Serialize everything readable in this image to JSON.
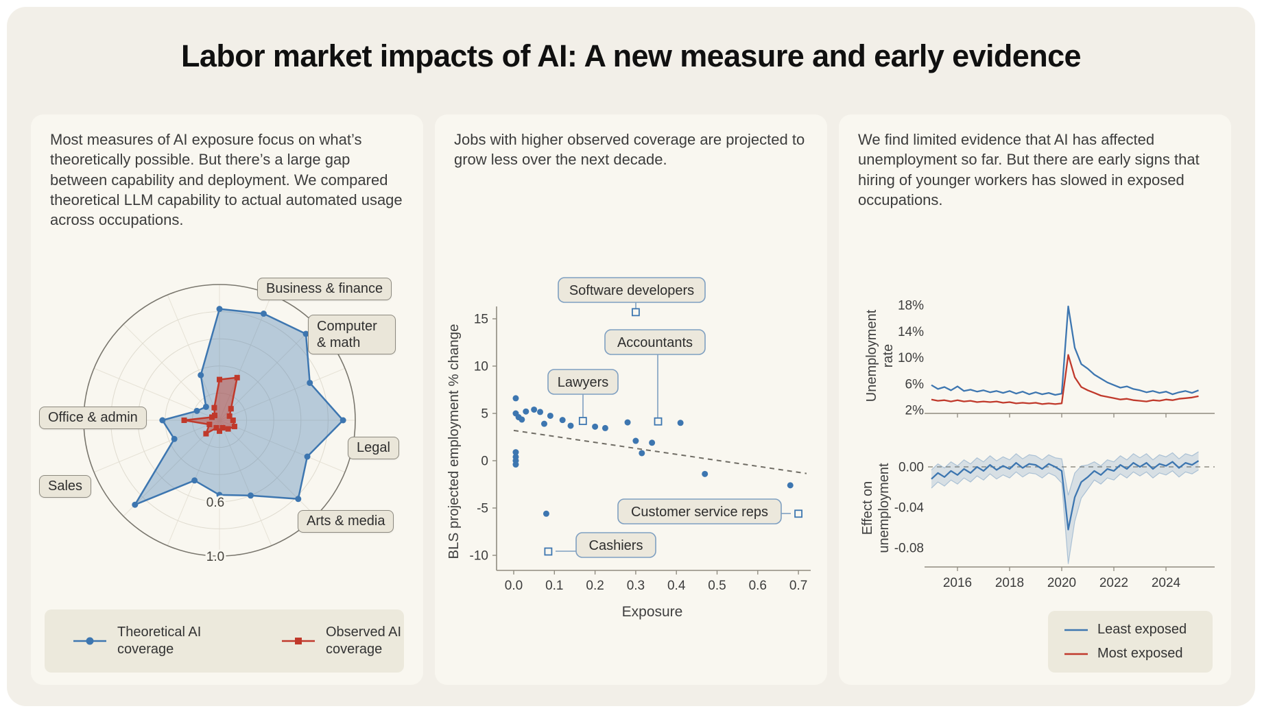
{
  "page": {
    "title": "Labor market impacts of AI: A new measure and early evidence"
  },
  "colors": {
    "blue": "#3d76b0",
    "red": "#c0392b",
    "grid": "#dfdbcf",
    "axis": "#8f8b7f",
    "box_border": "#8c897f",
    "scatter_box_border": "#7e9fc1",
    "card_bg": "#f9f7f0",
    "text": "#3c3c3c"
  },
  "panels": {
    "radar": {
      "intro": "Most measures of AI exposure focus on what’s theoretically possible. But there’s a large gap between capability and deployment. We compared theoretical LLM capability to actual automated usage across occupations.",
      "legend": [
        {
          "label": "Theoretical AI coverage",
          "marker": "circle"
        },
        {
          "label": "Observed AI coverage",
          "marker": "square"
        }
      ]
    },
    "scatter": {
      "intro": "Jobs with higher observed coverage are projected to grow less over the next decade."
    },
    "lines": {
      "intro": "We find limited evidence that AI has affected unemployment so far. But there are early signs that hiring of younger workers has slowed in exposed occupations.",
      "legend": [
        {
          "label": "Least exposed"
        },
        {
          "label": "Most exposed"
        }
      ]
    }
  },
  "chart_data": [
    {
      "type": "radar",
      "name": "Theoretical vs observed AI coverage by occupation",
      "r_max": 1.0,
      "rings": [
        0.2,
        0.4,
        0.6,
        0.8,
        1.0
      ],
      "ring_labels": [
        {
          "v": 0.6,
          "label": "0.6"
        },
        {
          "v": 1.0,
          "label": "1.0"
        }
      ],
      "spoke_labels": [
        {
          "index": 1,
          "text": "Business & finance"
        },
        {
          "index": 2,
          "text": "Computer & math"
        },
        {
          "index": 4,
          "text": "Legal"
        },
        {
          "index": 6,
          "text": "Arts & media"
        },
        {
          "index": 10,
          "text": "Sales"
        },
        {
          "index": 12,
          "text": "Office & admin"
        }
      ],
      "series": [
        {
          "name": "Theoretical AI coverage",
          "color": "#3d76b0",
          "marker": "circle",
          "fill_opacity": 0.35,
          "values": [
            0.82,
            0.85,
            0.9,
            0.72,
            0.91,
            0.7,
            0.82,
            0.6,
            0.55,
            0.48,
            0.88,
            0.36,
            0.42,
            0.18,
            0.14,
            0.36
          ]
        },
        {
          "name": "Observed AI coverage",
          "color": "#c0392b",
          "marker": "square",
          "fill_opacity": 0.45,
          "values": [
            0.3,
            0.34,
            0.12,
            0.08,
            0.1,
            0.12,
            0.09,
            0.06,
            0.08,
            0.06,
            0.14,
            0.08,
            0.26,
            0.06,
            0.05,
            0.1
          ]
        }
      ]
    },
    {
      "type": "scatter",
      "xlabel": "Exposure",
      "ylabel": "BLS projected employment % change",
      "xlim": [
        -0.02,
        0.74
      ],
      "ylim": [
        -11.5,
        16.5
      ],
      "xticks": [
        0.0,
        0.1,
        0.2,
        0.3,
        0.4,
        0.5,
        0.6,
        0.7
      ],
      "xtick_labels": [
        "0.0",
        "0.1",
        "0.2",
        "0.3",
        "0.4",
        "0.5",
        "0.6",
        "0.7"
      ],
      "yticks": [
        15,
        10,
        5,
        0,
        -5,
        -10
      ],
      "ytick_labels": [
        "15",
        "10",
        "5",
        "0",
        "-5",
        "-10"
      ],
      "points": [
        [
          0.005,
          6.6
        ],
        [
          0.005,
          5.0
        ],
        [
          0.012,
          4.6
        ],
        [
          0.02,
          4.35
        ],
        [
          0.03,
          5.2
        ],
        [
          0.005,
          0.9
        ],
        [
          0.005,
          0.4
        ],
        [
          0.005,
          0.0
        ],
        [
          0.005,
          -0.4
        ],
        [
          0.05,
          5.4
        ],
        [
          0.065,
          5.15
        ],
        [
          0.09,
          4.75
        ],
        [
          0.075,
          3.9
        ],
        [
          0.12,
          4.3
        ],
        [
          0.14,
          3.7
        ],
        [
          0.2,
          3.6
        ],
        [
          0.225,
          3.45
        ],
        [
          0.28,
          4.05
        ],
        [
          0.3,
          2.1
        ],
        [
          0.315,
          0.8
        ],
        [
          0.41,
          4.0
        ],
        [
          0.34,
          1.9
        ],
        [
          0.47,
          -1.4
        ],
        [
          0.08,
          -5.6
        ],
        [
          0.68,
          -2.6
        ]
      ],
      "labeled_points": [
        {
          "label": "Software developers",
          "x": 0.3,
          "y": 15.7
        },
        {
          "label": "Accountants",
          "x": 0.355,
          "y": 4.15
        },
        {
          "label": "Lawyers",
          "x": 0.17,
          "y": 4.2
        },
        {
          "label": "Customer service reps",
          "x": 0.7,
          "y": -5.6
        },
        {
          "label": "Cashiers",
          "x": 0.085,
          "y": -9.6
        }
      ],
      "trend_line": {
        "x1": 0.0,
        "y1": 3.2,
        "x2": 0.72,
        "y2": -1.35,
        "style": "dashed"
      }
    },
    {
      "type": "line",
      "name": "Unemployment rate by exposure group",
      "ylabel_lines": [
        "Unemployment",
        "rate"
      ],
      "x_start": 2015.0,
      "x_step": 0.25,
      "xticks": [
        2016,
        2018,
        2020,
        2022,
        2024
      ],
      "yticks": [
        {
          "v": 18,
          "label": "18%"
        },
        {
          "v": 14,
          "label": "14%"
        },
        {
          "v": 10,
          "label": "10%"
        },
        {
          "v": 6,
          "label": "6%"
        },
        {
          "v": 2,
          "label": "2%"
        }
      ],
      "series": [
        {
          "name": "Least exposed",
          "color": "#3d76b0",
          "values": [
            5.8,
            5.2,
            5.5,
            5.0,
            5.6,
            4.9,
            5.1,
            4.8,
            5.0,
            4.7,
            4.9,
            4.6,
            4.9,
            4.5,
            4.8,
            4.4,
            4.7,
            4.4,
            4.6,
            4.3,
            4.5,
            17.8,
            11.5,
            9.0,
            8.3,
            7.4,
            6.8,
            6.2,
            5.8,
            5.4,
            5.6,
            5.2,
            5.0,
            4.7,
            4.9,
            4.6,
            4.8,
            4.4,
            4.7,
            4.9,
            4.6,
            5.0
          ]
        },
        {
          "name": "Most exposed",
          "color": "#c0392b",
          "values": [
            3.6,
            3.4,
            3.5,
            3.3,
            3.5,
            3.3,
            3.4,
            3.2,
            3.3,
            3.2,
            3.3,
            3.1,
            3.2,
            3.0,
            3.1,
            3.0,
            3.1,
            2.9,
            3.0,
            2.9,
            3.0,
            10.4,
            7.0,
            5.5,
            5.0,
            4.6,
            4.2,
            4.0,
            3.8,
            3.6,
            3.7,
            3.5,
            3.4,
            3.3,
            3.5,
            3.4,
            3.6,
            3.5,
            3.7,
            3.8,
            3.9,
            4.1
          ]
        }
      ]
    },
    {
      "type": "line_band",
      "name": "Effect on unemployment in exposed occupations",
      "ylabel_lines": [
        "Effect on",
        "unemployment"
      ],
      "x_start": 2015.0,
      "x_step": 0.25,
      "xticks": [
        2016,
        2018,
        2020,
        2022,
        2024
      ],
      "yticks": [
        {
          "v": 0,
          "label": "0.00"
        },
        {
          "v": -0.04,
          "label": "-0.04"
        },
        {
          "v": -0.08,
          "label": "-0.08"
        }
      ],
      "zero_line": true,
      "series": [
        {
          "name": "Effect estimate",
          "color": "#3d76b0",
          "values": [
            -0.012,
            -0.006,
            -0.01,
            -0.004,
            -0.008,
            -0.002,
            -0.006,
            0.0,
            -0.004,
            0.002,
            -0.003,
            0.001,
            -0.002,
            0.004,
            -0.001,
            0.003,
            0.002,
            -0.002,
            0.003,
            0.0,
            -0.004,
            -0.062,
            -0.03,
            -0.015,
            -0.01,
            -0.004,
            -0.008,
            -0.002,
            -0.004,
            0.002,
            -0.002,
            0.004,
            0.0,
            0.004,
            -0.002,
            0.003,
            0.001,
            0.005,
            -0.001,
            0.004,
            0.002,
            0.006
          ],
          "band_halfwidth": [
            0.009,
            0.009,
            0.009,
            0.009,
            0.009,
            0.009,
            0.009,
            0.009,
            0.009,
            0.009,
            0.009,
            0.009,
            0.009,
            0.009,
            0.009,
            0.009,
            0.009,
            0.009,
            0.009,
            0.009,
            0.012,
            0.034,
            0.024,
            0.016,
            0.012,
            0.009,
            0.009,
            0.009,
            0.009,
            0.009,
            0.009,
            0.009,
            0.009,
            0.009,
            0.009,
            0.009,
            0.009,
            0.009,
            0.009,
            0.009,
            0.009,
            0.009
          ]
        }
      ]
    }
  ]
}
